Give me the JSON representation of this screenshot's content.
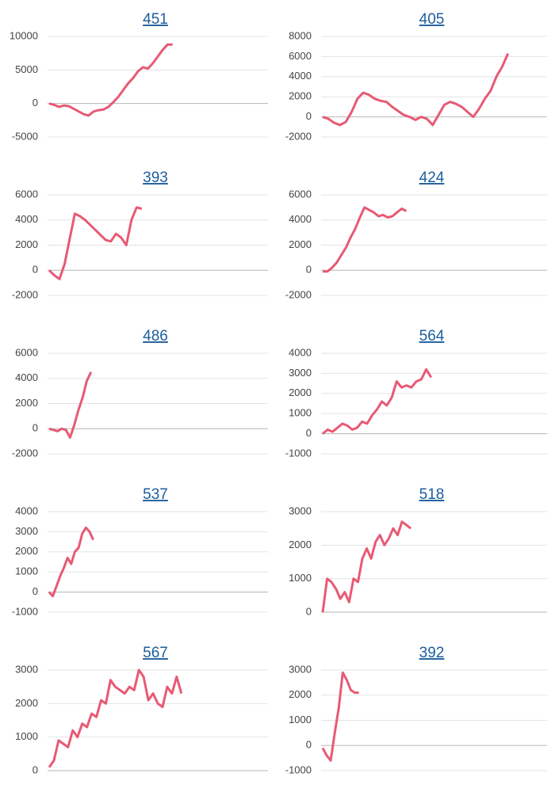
{
  "chart_data": [
    {
      "type": "line",
      "title": "451",
      "color": "#e75a74",
      "ylim": [
        -5000,
        10000
      ],
      "yticks": [
        -5000,
        0,
        5000,
        10000
      ],
      "values": [
        0,
        -200,
        -500,
        -300,
        -400,
        -800,
        -1200,
        -1600,
        -1800,
        -1200,
        -1000,
        -900,
        -500,
        200,
        1000,
        2000,
        3000,
        3800,
        4800,
        5400,
        5200,
        6000,
        7000,
        8000,
        8800,
        8800
      ]
    },
    {
      "type": "line",
      "title": "405",
      "color": "#e75a74",
      "ylim": [
        -2000,
        8000
      ],
      "yticks": [
        -2000,
        0,
        2000,
        4000,
        6000,
        8000
      ],
      "values": [
        0,
        -200,
        -600,
        -800,
        -500,
        500,
        1800,
        2400,
        2200,
        1800,
        1600,
        1500,
        1000,
        600,
        200,
        0,
        -300,
        0,
        -200,
        -800,
        200,
        1200,
        1500,
        1300,
        1000,
        500,
        0,
        800,
        1800,
        2600,
        4000,
        5000,
        6300
      ]
    },
    {
      "type": "line",
      "title": "393",
      "color": "#e75a74",
      "ylim": [
        -2000,
        6000
      ],
      "yticks": [
        -2000,
        0,
        2000,
        4000,
        6000
      ],
      "values": [
        0,
        -400,
        -700,
        500,
        2500,
        4500,
        4300,
        4000,
        3600,
        3200,
        2800,
        2400,
        2300,
        2900,
        2600,
        2000,
        4000,
        5000,
        4900
      ]
    },
    {
      "type": "line",
      "title": "424",
      "color": "#e75a74",
      "ylim": [
        -2000,
        6000
      ],
      "yticks": [
        -2000,
        0,
        2000,
        4000,
        6000
      ],
      "values": [
        -100,
        -100,
        200,
        600,
        1200,
        1800,
        2600,
        3300,
        4200,
        5000,
        4800,
        4600,
        4300,
        4400,
        4200,
        4300,
        4600,
        4900,
        4700
      ]
    },
    {
      "type": "line",
      "title": "486",
      "color": "#e75a74",
      "ylim": [
        -2000,
        6000
      ],
      "yticks": [
        -2000,
        0,
        2000,
        4000,
        6000
      ],
      "values": [
        0,
        -100,
        -200,
        0,
        -100,
        -700,
        300,
        1500,
        2500,
        3800,
        4500
      ]
    },
    {
      "type": "line",
      "title": "564",
      "color": "#e75a74",
      "ylim": [
        -1000,
        4000
      ],
      "yticks": [
        -1000,
        0,
        1000,
        2000,
        3000,
        4000
      ],
      "values": [
        0,
        200,
        100,
        300,
        500,
        400,
        200,
        300,
        600,
        500,
        900,
        1200,
        1600,
        1400,
        1800,
        2600,
        2300,
        2400,
        2300,
        2600,
        2700,
        3200,
        2800
      ]
    },
    {
      "type": "line",
      "title": "537",
      "color": "#e75a74",
      "ylim": [
        -1000,
        4000
      ],
      "yticks": [
        -1000,
        0,
        1000,
        2000,
        3000,
        4000
      ],
      "values": [
        0,
        -200,
        300,
        800,
        1200,
        1700,
        1400,
        2000,
        2200,
        2900,
        3200,
        3000,
        2600
      ]
    },
    {
      "type": "line",
      "title": "518",
      "color": "#e75a74",
      "ylim": [
        0,
        3000
      ],
      "yticks": [
        0,
        1000,
        2000,
        3000
      ],
      "values": [
        0,
        1000,
        900,
        700,
        400,
        600,
        300,
        1000,
        900,
        1600,
        1900,
        1600,
        2100,
        2300,
        2000,
        2200,
        2500,
        2300,
        2700,
        2600,
        2500
      ]
    },
    {
      "type": "line",
      "title": "567",
      "color": "#e75a74",
      "ylim": [
        0,
        3000
      ],
      "yticks": [
        0,
        1000,
        2000,
        3000
      ],
      "values": [
        100,
        300,
        900,
        800,
        700,
        1200,
        1000,
        1400,
        1300,
        1700,
        1600,
        2100,
        2000,
        2700,
        2500,
        2400,
        2300,
        2500,
        2400,
        3000,
        2800,
        2100,
        2300,
        2000,
        1900,
        2500,
        2300,
        2800,
        2300
      ]
    },
    {
      "type": "line",
      "title": "392",
      "color": "#e75a74",
      "ylim": [
        -1000,
        3000
      ],
      "yticks": [
        -1000,
        0,
        1000,
        2000,
        3000
      ],
      "values": [
        -100,
        -400,
        -600,
        500,
        1500,
        2900,
        2600,
        2200,
        2100,
        2100
      ]
    }
  ]
}
